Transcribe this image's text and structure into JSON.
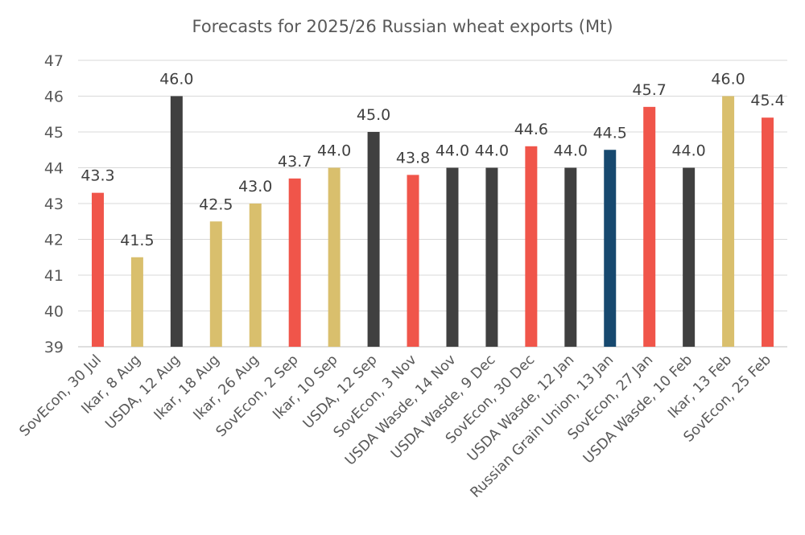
{
  "chart_data": {
    "type": "bar",
    "title": "Forecasts for 2025/26 Russian wheat exports (Mt)",
    "xlabel": "",
    "ylabel": "",
    "ylim": [
      39,
      47
    ],
    "yticks": [
      39,
      40,
      41,
      42,
      43,
      44,
      45,
      46,
      47
    ],
    "grid": true,
    "legend": "none",
    "source_colors": {
      "SovEcon": "#f0554a",
      "Ikar": "#d9bf6d",
      "USDA": "#404040",
      "Russian Grain Union": "#17496f"
    },
    "categories": [
      "SovEcon, 30 Jul",
      "Ikar, 8 Aug",
      "USDA, 12 Aug",
      "Ikar, 18 Aug",
      "Ikar, 26 Aug",
      "SovEcon, 2 Sep",
      "Ikar, 10 Sep",
      "USDA, 12 Sep",
      "SovEcon, 3 Nov",
      "USDA Wasde, 14 Nov",
      "USDA Wasde, 9 Dec",
      "SovEcon, 30 Dec",
      "USDA Wasde, 12 Jan",
      "Russian Grain Union, 13 Jan",
      "SovEcon, 27 Jan",
      "USDA Wasde, 10 Feb",
      "Ikar, 13 Feb",
      "SovEcon, 25 Feb"
    ],
    "values": [
      43.3,
      41.5,
      46.0,
      42.5,
      43.0,
      43.7,
      44.0,
      45.0,
      43.8,
      44.0,
      44.0,
      44.6,
      44.0,
      44.5,
      45.7,
      44.0,
      46.0,
      45.4
    ],
    "data_labels": [
      "43.3",
      "41.5",
      "46.0",
      "42.5",
      "43.0",
      "43.7",
      "44.0",
      "45.0",
      "43.8",
      "44.0",
      "44.0",
      "44.6",
      "44.0",
      "44.5",
      "45.7",
      "44.0",
      "46.0",
      "45.4"
    ],
    "bar_sources": [
      "SovEcon",
      "Ikar",
      "USDA",
      "Ikar",
      "Ikar",
      "SovEcon",
      "Ikar",
      "USDA",
      "SovEcon",
      "USDA",
      "USDA",
      "SovEcon",
      "USDA",
      "Russian Grain Union",
      "SovEcon",
      "USDA",
      "Ikar",
      "SovEcon"
    ]
  }
}
